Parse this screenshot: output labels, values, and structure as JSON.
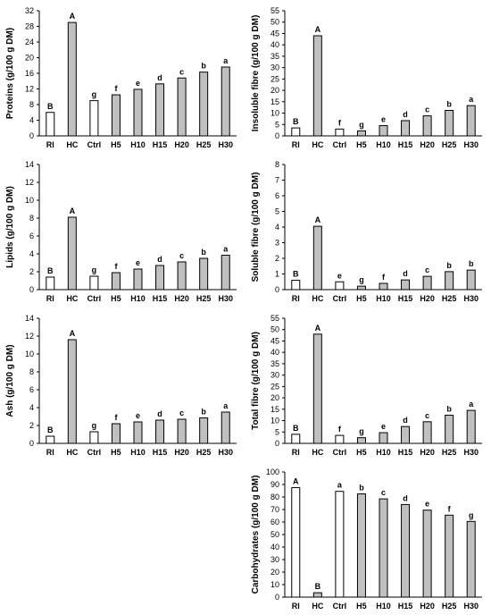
{
  "chart_data": [
    {
      "type": "bar",
      "categories": [
        "RI",
        "HC",
        "Ctrl",
        "H5",
        "H10",
        "H15",
        "H20",
        "H25",
        "H30"
      ],
      "values": [
        6.0,
        29.0,
        9.0,
        10.5,
        11.9,
        13.3,
        14.8,
        16.3,
        17.6
      ],
      "letters": [
        "B",
        "A",
        "g",
        "f",
        "e",
        "d",
        "c",
        "b",
        "a"
      ],
      "ylabel": "Proteins (g/100 g DM)",
      "ylim": [
        0,
        32
      ],
      "yticks": [
        0,
        4,
        8,
        12,
        16,
        20,
        24,
        28,
        32
      ]
    },
    {
      "type": "bar",
      "categories": [
        "RI",
        "HC",
        "Ctrl",
        "H5",
        "H10",
        "H15",
        "H20",
        "H25",
        "H30"
      ],
      "values": [
        3.5,
        44.0,
        3.0,
        2.2,
        4.5,
        6.7,
        8.8,
        11.2,
        13.3
      ],
      "letters": [
        "B",
        "A",
        "f",
        "g",
        "e",
        "d",
        "c",
        "b",
        "a"
      ],
      "ylabel": "Insoluble fibre (g/100 g DM)",
      "ylim": [
        0,
        55
      ],
      "yticks": [
        0,
        5,
        10,
        15,
        20,
        25,
        30,
        35,
        40,
        45,
        50,
        55
      ]
    },
    {
      "type": "bar",
      "categories": [
        "RI",
        "HC",
        "Ctrl",
        "H5",
        "H10",
        "H15",
        "H20",
        "H25",
        "H30"
      ],
      "values": [
        1.4,
        8.1,
        1.5,
        1.9,
        2.3,
        2.7,
        3.1,
        3.5,
        3.85
      ],
      "letters": [
        "B",
        "A",
        "g",
        "f",
        "e",
        "d",
        "c",
        "b",
        "a"
      ],
      "ylabel": "Lipids (g/100 g DM)",
      "ylim": [
        0,
        14
      ],
      "yticks": [
        0,
        2,
        4,
        6,
        8,
        10,
        12,
        14
      ]
    },
    {
      "type": "bar",
      "categories": [
        "RI",
        "HC",
        "Ctrl",
        "H5",
        "H10",
        "H15",
        "H20",
        "H25",
        "H30"
      ],
      "values": [
        0.6,
        4.05,
        0.5,
        0.22,
        0.4,
        0.62,
        0.85,
        1.15,
        1.25
      ],
      "letters": [
        "B",
        "A",
        "e",
        "g",
        "f",
        "d",
        "c",
        "b",
        "b"
      ],
      "ylabel": "Soluble fibre (g/100 g DM)",
      "ylim": [
        0,
        8
      ],
      "yticks": [
        0,
        1,
        2,
        3,
        4,
        5,
        6,
        7,
        8
      ]
    },
    {
      "type": "bar",
      "categories": [
        "RI",
        "HC",
        "Ctrl",
        "H5",
        "H10",
        "H15",
        "H20",
        "H25",
        "H30"
      ],
      "values": [
        0.8,
        11.6,
        1.3,
        2.2,
        2.4,
        2.6,
        2.7,
        2.85,
        3.5
      ],
      "letters": [
        "B",
        "A",
        "g",
        "f",
        "e",
        "d",
        "c",
        "b",
        "a"
      ],
      "ylabel": "Ash (g/100 g DM)",
      "ylim": [
        0,
        14
      ],
      "yticks": [
        0,
        2,
        4,
        6,
        8,
        10,
        12,
        14
      ]
    },
    {
      "type": "bar",
      "categories": [
        "RI",
        "HC",
        "Ctrl",
        "H5",
        "H10",
        "H15",
        "H20",
        "H25",
        "H30"
      ],
      "values": [
        4.0,
        48.0,
        3.5,
        2.5,
        4.7,
        7.4,
        9.5,
        12.4,
        14.5
      ],
      "letters": [
        "B",
        "A",
        "f",
        "g",
        "e",
        "d",
        "c",
        "b",
        "a"
      ],
      "ylabel": "Total fibre (g/100 g DM)",
      "ylim": [
        0,
        55
      ],
      "yticks": [
        0,
        5,
        10,
        15,
        20,
        25,
        30,
        35,
        40,
        45,
        50,
        55
      ]
    },
    {
      "type": "bar",
      "categories": [
        "RI",
        "HC",
        "Ctrl",
        "H5",
        "H10",
        "H15",
        "H20",
        "H25",
        "H30"
      ],
      "values": [
        87.5,
        3.5,
        84.5,
        82.5,
        78.5,
        74.0,
        69.5,
        65.5,
        60.5
      ],
      "letters": [
        "A",
        "B",
        "a",
        "b",
        "c",
        "d",
        "e",
        "f",
        "g"
      ],
      "ylabel": "Carbohydrates (g/100 g DM)",
      "ylim": [
        0,
        100
      ],
      "yticks": [
        0,
        10,
        20,
        30,
        40,
        50,
        60,
        70,
        80,
        90,
        100
      ]
    }
  ],
  "colors": {
    "white_bars": "#ffffff",
    "grey_bars": "#c0c0c0",
    "bar_edge": "#000000",
    "axis": "#000000"
  },
  "white_bar_categories": [
    "RI",
    "Ctrl"
  ]
}
